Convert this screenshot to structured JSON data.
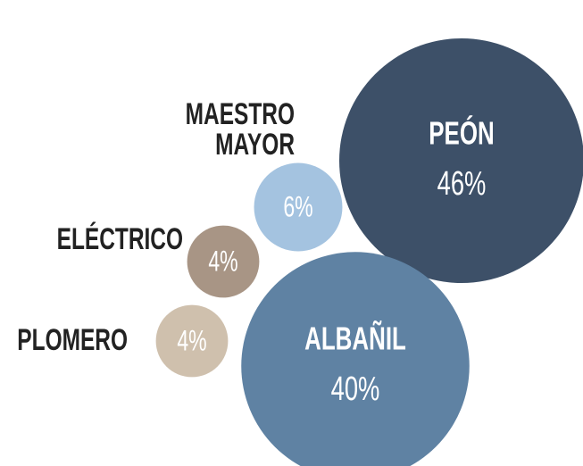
{
  "chart_data": {
    "type": "bubble",
    "categories": [
      "PEÓN",
      "ALBAÑIL",
      "MAESTRO MAYOR",
      "ELÉCTRICO",
      "PLOMERO"
    ],
    "values": [
      46,
      40,
      6,
      4,
      4
    ],
    "value_labels": [
      "46%",
      "40%",
      "6%",
      "4%",
      "4%"
    ],
    "colors": [
      "#3d5068",
      "#5f82a3",
      "#a4c3e0",
      "#a89585",
      "#cfc0ad"
    ]
  }
}
